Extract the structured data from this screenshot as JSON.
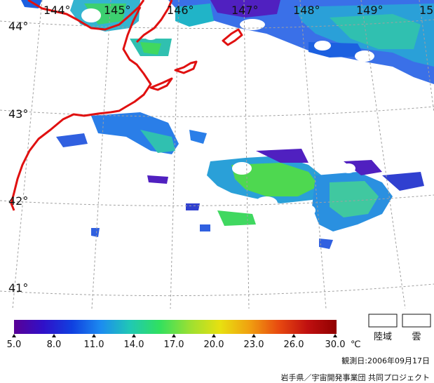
{
  "map": {
    "lon_labels": [
      "144°",
      "145°",
      "146°",
      "147°",
      "148°",
      "149°",
      "15"
    ],
    "lat_labels": [
      "44°",
      "43°",
      "42°",
      "41°"
    ],
    "colors": {
      "coastline": "#e01010",
      "grid": "#a0a0a0",
      "cloud": "#ffffff"
    }
  },
  "legend": {
    "ticks": [
      "5.0",
      "8.0",
      "11.0",
      "14.0",
      "17.0",
      "20.0",
      "23.0",
      "26.0",
      "30.0"
    ],
    "unit": "℃",
    "gradient": [
      "#5a0096",
      "#3010c8",
      "#1040e0",
      "#1c8cf0",
      "#20c8b4",
      "#30e060",
      "#a0e030",
      "#e8e010",
      "#f0a010",
      "#e84a10",
      "#c01010",
      "#900000"
    ],
    "land_label": "陸域",
    "cloud_label": "雲"
  },
  "footer": {
    "observation_date": "観測日:2006年09月17日",
    "credit": "岩手県／宇宙開発事業団  共同プロジェクト"
  }
}
